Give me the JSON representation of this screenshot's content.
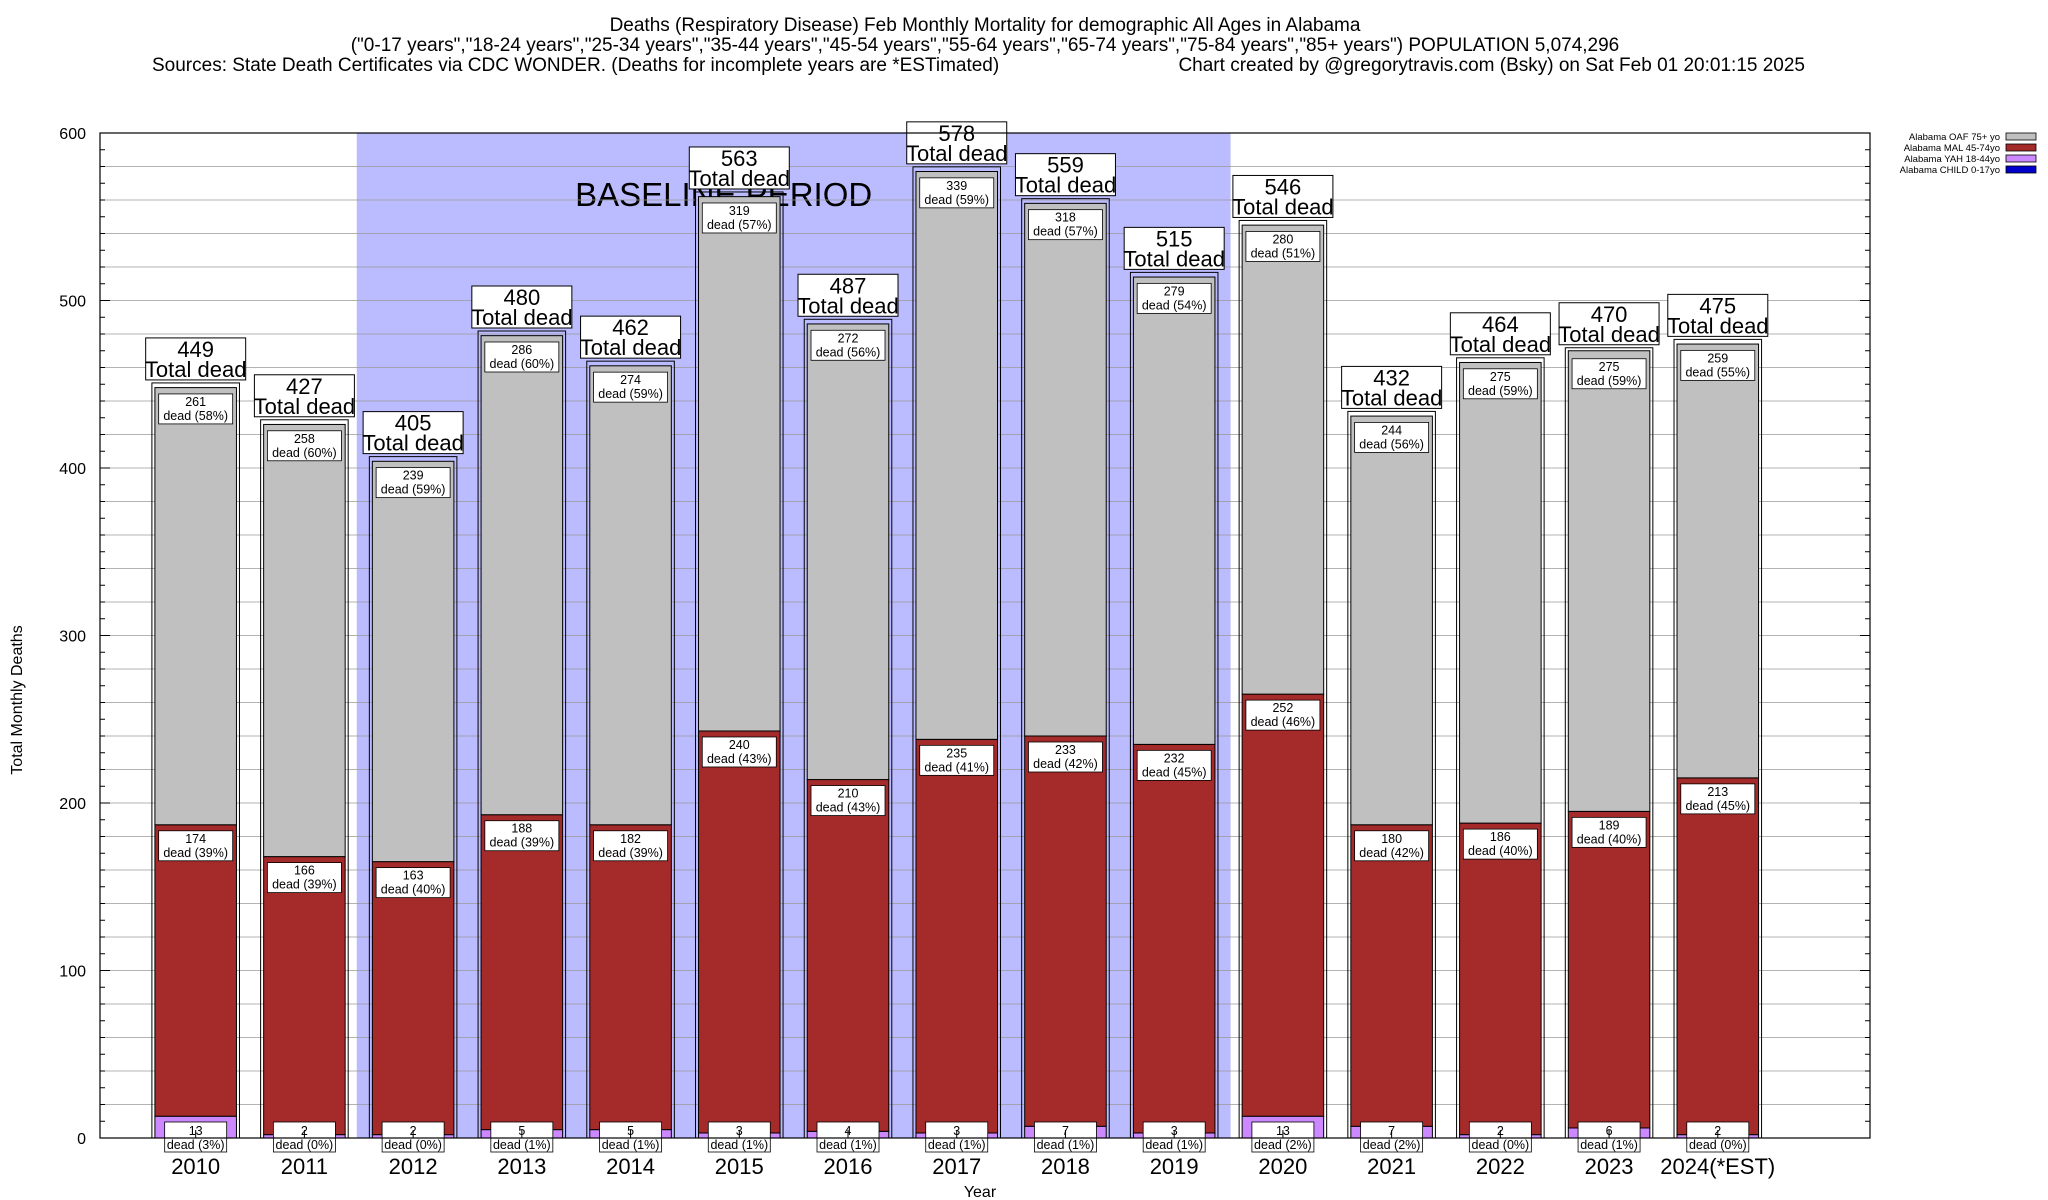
{
  "chart_data": {
    "type": "bar",
    "stacked": true,
    "title": [
      "Deaths (Respiratory Disease) Feb Monthly Mortality for demographic All Ages in Alabama",
      "(\"0-17 years\",\"18-24 years\",\"25-34 years\",\"35-44 years\",\"45-54 years\",\"55-64 years\",\"65-74 years\",\"75-84 years\",\"85+ years\") POPULATION 5,074,296"
    ],
    "sources": "Sources: State Death Certificates via CDC WONDER. (Deaths for incomplete years are *ESTimated)",
    "credit": "Chart created by @gregorytravis.com (Bsky) on Sat Feb 01 20:01:15 2025",
    "xlabel": "Year",
    "ylabel": "Total Monthly Deaths",
    "ylim": [
      0,
      600
    ],
    "yticks": [
      0,
      100,
      200,
      300,
      400,
      500,
      600
    ],
    "grid": true,
    "legend_position": "top-right",
    "baseline_label": "BASELINE PERIOD",
    "baseline_range": [
      "2012",
      "2019"
    ],
    "categories": [
      "2010",
      "2011",
      "2012",
      "2013",
      "2014",
      "2015",
      "2016",
      "2017",
      "2018",
      "2019",
      "2020",
      "2021",
      "2022",
      "2023",
      "2024(*EST)"
    ],
    "totals": [
      449,
      427,
      405,
      480,
      462,
      563,
      487,
      578,
      559,
      515,
      546,
      432,
      464,
      470,
      475
    ],
    "total_word": "Total dead",
    "dead_word": "dead",
    "series": [
      {
        "name": "Alabama CHILD 0-17yo",
        "color": "#0000cc",
        "values": [
          0,
          0,
          0,
          0,
          0,
          0,
          0,
          0,
          0,
          0,
          0,
          0,
          0,
          0,
          0
        ],
        "pct": []
      },
      {
        "name": "Alabama YAH 18-44yo",
        "color": "#cc88ff",
        "values": [
          13,
          2,
          2,
          5,
          5,
          3,
          4,
          3,
          7,
          3,
          13,
          7,
          2,
          6,
          2
        ],
        "pct": [
          "3%",
          "0%",
          "0%",
          "1%",
          "1%",
          "1%",
          "1%",
          "1%",
          "1%",
          "1%",
          "2%",
          "2%",
          "0%",
          "1%",
          "0%"
        ]
      },
      {
        "name": "Alabama MAL 45-74yo",
        "color": "#a52a2a",
        "values": [
          174,
          166,
          163,
          188,
          182,
          240,
          210,
          235,
          233,
          232,
          252,
          180,
          186,
          189,
          213
        ],
        "pct": [
          "39%",
          "39%",
          "40%",
          "39%",
          "39%",
          "43%",
          "43%",
          "41%",
          "42%",
          "45%",
          "46%",
          "42%",
          "40%",
          "40%",
          "45%"
        ]
      },
      {
        "name": "Alabama OAF 75+ yo",
        "color": "#c0c0c0",
        "values": [
          261,
          258,
          239,
          286,
          274,
          319,
          272,
          339,
          318,
          279,
          280,
          244,
          275,
          275,
          259
        ],
        "pct": [
          "58%",
          "60%",
          "59%",
          "60%",
          "59%",
          "57%",
          "56%",
          "59%",
          "57%",
          "54%",
          "51%",
          "56%",
          "59%",
          "59%",
          "55%"
        ]
      }
    ]
  }
}
